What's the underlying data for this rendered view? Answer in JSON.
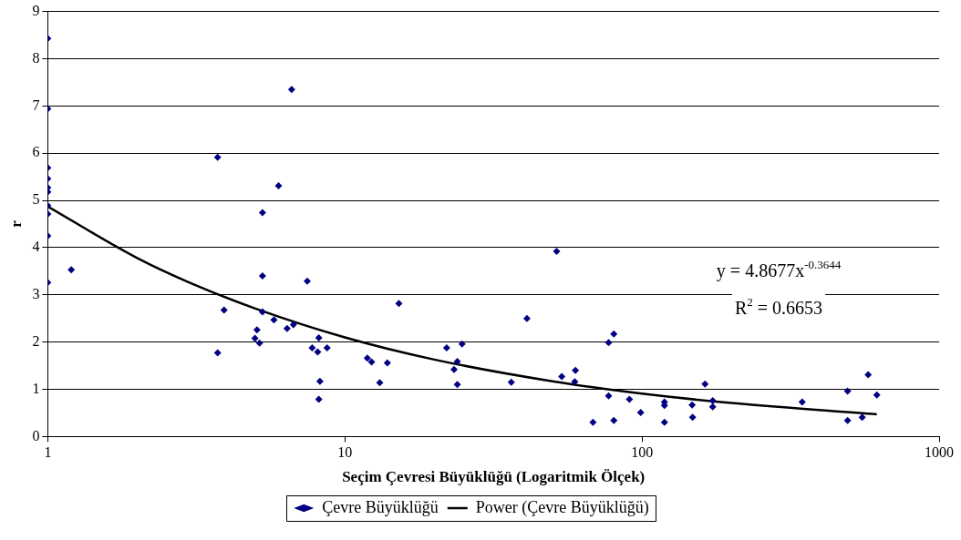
{
  "chart_data": {
    "type": "scatter",
    "xlabel": "Seçim Çevresi Büyüklüğü (Logaritmik Ölçek)",
    "ylabel": "r",
    "log": "x",
    "xlim": [
      1,
      1000
    ],
    "xticks": [
      1,
      10,
      100,
      1000
    ],
    "ylim": [
      0,
      9
    ],
    "yticks": [
      0,
      1,
      2,
      3,
      4,
      5,
      6,
      7,
      8,
      9
    ],
    "grid": "y",
    "legend": "bottom",
    "marker": "diamond",
    "annotations": [
      "y = 4.8677x$^{-0.3644}$",
      "R$^{2}$ = 0.6653"
    ],
    "series": [
      {
        "name": "Çevre Büyüklüğü",
        "color": "#000080",
        "x": [
          1,
          1,
          1,
          1,
          1,
          1,
          1,
          1,
          1,
          1,
          1.2,
          3.73,
          3.73,
          3.92,
          5.28,
          5.28,
          5.28,
          5.98,
          6.62,
          7.47,
          5.06,
          4.98,
          5.16,
          5.77,
          6.39,
          6.71,
          8.17,
          7.76,
          8.1,
          8.71,
          8.24,
          8.17,
          15.2,
          11.9,
          12.3,
          13.9,
          13.1,
          22.0,
          23.9,
          23.3,
          23.9,
          24.8,
          36.3,
          41.0,
          51.6,
          53.7,
          59.7,
          59.4,
          77.2,
          80.4,
          77.2,
          68.4,
          80.4,
          90.7,
          99,
          119,
          119,
          119,
          147.5,
          148,
          163,
          173,
          173,
          346,
          492,
          492,
          551,
          577,
          617
        ],
        "values": [
          8.43,
          6.94,
          5.69,
          5.46,
          5.27,
          5.18,
          4.89,
          4.71,
          4.25,
          3.26,
          3.53,
          5.91,
          1.77,
          2.68,
          4.74,
          3.4,
          2.64,
          5.31,
          7.35,
          3.29,
          2.26,
          2.08,
          1.98,
          2.47,
          2.29,
          2.37,
          2.09,
          1.88,
          1.79,
          1.88,
          1.17,
          0.79,
          2.82,
          1.66,
          1.58,
          1.56,
          1.14,
          1.88,
          1.59,
          1.42,
          1.1,
          1.96,
          1.15,
          2.5,
          3.92,
          1.27,
          1.4,
          1.16,
          1.99,
          2.17,
          0.86,
          0.3,
          0.34,
          0.79,
          0.51,
          0.73,
          0.66,
          0.3,
          0.67,
          0.41,
          1.11,
          0.76,
          0.63,
          0.73,
          0.96,
          0.34,
          0.41,
          1.31,
          0.88
        ]
      },
      {
        "name": "Power (Çevre Büyüklüğü)",
        "type": "line",
        "color": "#000000",
        "marker": "none",
        "line_style": "solid",
        "x": [
          1,
          2,
          3,
          5,
          10,
          20,
          50,
          100,
          200,
          617
        ],
        "values": [
          4.87,
          3.78,
          3.26,
          2.71,
          2.1,
          1.63,
          1.17,
          0.91,
          0.71,
          0.47
        ]
      }
    ]
  }
}
